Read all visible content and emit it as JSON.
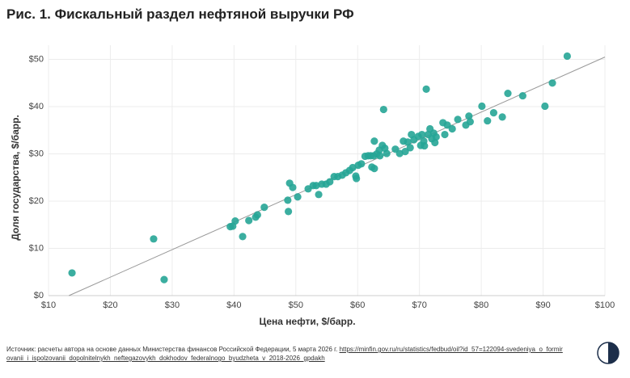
{
  "chart_data": {
    "type": "scatter",
    "title": "Рис. 1. Фискальный раздел нефтяной выручки РФ",
    "xlabel": "Цена нефти, $/барр.",
    "ylabel": "Доля государства, $/барр.",
    "color": "#26a596",
    "line_color": "#999999",
    "grid": true,
    "xlim": [
      10,
      100
    ],
    "ylim": [
      0,
      53
    ],
    "xticks": [
      {
        "value": 10,
        "label": "$10"
      },
      {
        "value": 20,
        "label": "$20"
      },
      {
        "value": 30,
        "label": "$30"
      },
      {
        "value": 40,
        "label": "$40"
      },
      {
        "value": 50,
        "label": "$50"
      },
      {
        "value": 60,
        "label": "$60"
      },
      {
        "value": 70,
        "label": "$70"
      },
      {
        "value": 80,
        "label": "$80"
      },
      {
        "value": 90,
        "label": "$90"
      },
      {
        "value": 100,
        "label": "$100"
      }
    ],
    "yticks": [
      {
        "value": 0,
        "label": "$0"
      },
      {
        "value": 10,
        "label": "$10"
      },
      {
        "value": 20,
        "label": "$20"
      },
      {
        "value": 30,
        "label": "$30"
      },
      {
        "value": 40,
        "label": "$40"
      },
      {
        "value": 50,
        "label": "$50"
      }
    ],
    "x": [
      13.8,
      27.0,
      28.7,
      39.4,
      39.8,
      40.2,
      41.4,
      42.4,
      43.5,
      43.8,
      44.9,
      48.7,
      48.8,
      49.0,
      49.5,
      50.3,
      52.0,
      52.8,
      53.3,
      53.7,
      54.2,
      54.9,
      55.5,
      56.2,
      56.8,
      57.5,
      58.1,
      58.7,
      59.2,
      59.7,
      60.1,
      60.6,
      59.8,
      61.2,
      61.7,
      62.1,
      62.3,
      62.7,
      62.7,
      62.6,
      63.1,
      63.5,
      63.6,
      64.0,
      64.2,
      64.4,
      64.7,
      66.1,
      66.8,
      67.4,
      67.7,
      68.1,
      68.5,
      68.7,
      69.1,
      69.8,
      70.2,
      70.4,
      70.7,
      71.1,
      70.8,
      71.4,
      71.7,
      72.0,
      72.3,
      72.5,
      72.7,
      73.8,
      74.1,
      74.5,
      75.3,
      76.2,
      77.5,
      78.0,
      78.2,
      80.1,
      81.0,
      82.0,
      83.4,
      84.3,
      86.7,
      90.3,
      91.5,
      93.9
    ],
    "values": [
      4.8,
      12.0,
      3.4,
      14.6,
      14.7,
      15.8,
      12.5,
      15.9,
      16.6,
      17.1,
      18.7,
      20.2,
      17.8,
      23.8,
      22.9,
      20.9,
      22.6,
      23.3,
      23.3,
      21.4,
      23.6,
      23.6,
      24.1,
      25.2,
      25.2,
      25.5,
      26.0,
      26.5,
      27.1,
      25.3,
      27.6,
      27.9,
      24.8,
      29.5,
      29.6,
      29.6,
      27.2,
      26.9,
      32.7,
      29.6,
      30.0,
      30.8,
      29.6,
      31.8,
      39.4,
      31.2,
      30.1,
      31.0,
      30.1,
      32.7,
      30.5,
      32.5,
      31.3,
      34.1,
      33.0,
      33.7,
      31.8,
      34.1,
      32.7,
      43.7,
      31.7,
      34.1,
      35.3,
      33.2,
      34.4,
      32.4,
      33.6,
      36.6,
      34.1,
      36.1,
      35.3,
      37.3,
      36.1,
      38.0,
      36.8,
      40.1,
      37.0,
      38.7,
      37.8,
      42.8,
      42.3,
      40.1,
      45.0,
      50.7
    ],
    "trendline": {
      "x": [
        13.3,
        100
      ],
      "y": [
        0,
        50.5
      ]
    }
  },
  "source": {
    "text": "Источник: расчеты автора на основе данных Министерства финансов Российской Федерации, 5 марта 2026 г.",
    "link": "https://minfin.gov.ru/ru/statistics/fedbud/oil?id_57=122094-svedeniya_o_formirovanii_i_ispolzovanii_dopolnitelnykh_neftegazovykh_dokhodov_federalnogo_byudzheta_v_2018-2026_gpdakh"
  }
}
